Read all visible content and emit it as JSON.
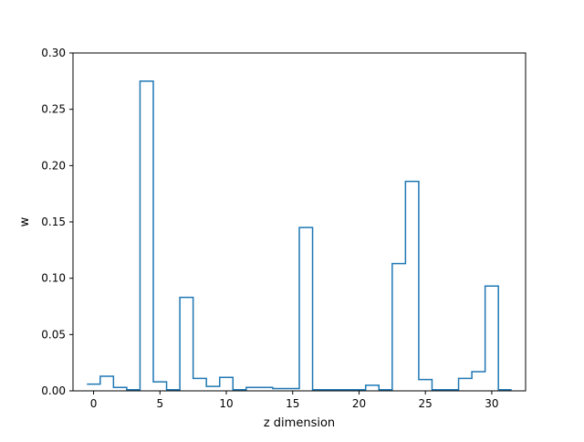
{
  "chart_data": {
    "type": "step",
    "title": "",
    "xlabel": "z dimension",
    "ylabel": "w",
    "xlim": [
      -1.55,
      32.55
    ],
    "ylim": [
      0.0,
      0.3
    ],
    "x": [
      0,
      1,
      2,
      3,
      4,
      5,
      6,
      7,
      8,
      9,
      10,
      11,
      12,
      13,
      14,
      15,
      16,
      17,
      18,
      19,
      20,
      21,
      22,
      23,
      24,
      25,
      26,
      27,
      28,
      29,
      30,
      31
    ],
    "values": [
      0.006,
      0.013,
      0.003,
      0.001,
      0.275,
      0.008,
      0.001,
      0.083,
      0.011,
      0.004,
      0.012,
      0.001,
      0.003,
      0.003,
      0.002,
      0.002,
      0.145,
      0.001,
      0.001,
      0.001,
      0.001,
      0.005,
      0.001,
      0.113,
      0.186,
      0.01,
      0.001,
      0.001,
      0.011,
      0.017,
      0.093,
      0.001
    ],
    "xticks": [
      0,
      5,
      10,
      15,
      20,
      25,
      30
    ],
    "xtick_labels": [
      "0",
      "5",
      "10",
      "15",
      "20",
      "25",
      "30"
    ],
    "yticks": [
      0.0,
      0.05,
      0.1,
      0.15,
      0.2,
      0.25,
      0.3
    ],
    "ytick_labels": [
      "0.00",
      "0.05",
      "0.10",
      "0.15",
      "0.20",
      "0.25",
      "0.30"
    ],
    "line_color": "#1f77b4",
    "grid": false,
    "legend": "none"
  }
}
